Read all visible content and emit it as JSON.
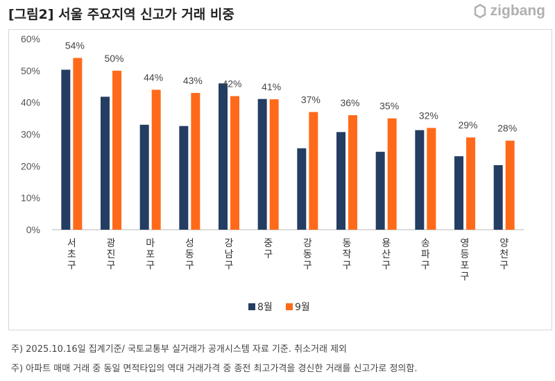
{
  "title": "[그림2] 서울 주요지역 신고가 거래 비중",
  "logo": "zigbang",
  "notes": [
    "주) 2025.10.16일 집계기준/ 국토교통부 실거래가 공개시스템 자료 기준. 취소거래 제외",
    "주) 아파트 매매 거래 중 동일 면적타입의 역대 거래가격 중 종전 최고가격을 경신한 거래를 신고가로 정의함."
  ],
  "chart_data": {
    "type": "bar",
    "title": "",
    "categories": [
      "서초구",
      "광진구",
      "마포구",
      "성동구",
      "강남구",
      "중구",
      "강동구",
      "동작구",
      "용산구",
      "송파구",
      "영등포구",
      "양천구"
    ],
    "series": [
      {
        "name": "8월",
        "color": "#243d62",
        "values": [
          50.3,
          41.8,
          33.0,
          32.6,
          46.0,
          41.1,
          25.6,
          30.7,
          24.5,
          31.3,
          23.1,
          20.3
        ]
      },
      {
        "name": "9월",
        "color": "#ff6a1a",
        "values": [
          54,
          50,
          44,
          43,
          42,
          41,
          37,
          36,
          35,
          32,
          29,
          28
        ],
        "labels": [
          "54%",
          "50%",
          "44%",
          "43%",
          "42%",
          "41%",
          "37%",
          "36%",
          "35%",
          "32%",
          "29%",
          "28%"
        ]
      }
    ],
    "ylim": [
      0,
      60
    ],
    "yticks": [
      "0%",
      "10%",
      "20%",
      "30%",
      "40%",
      "50%",
      "60%"
    ],
    "grid": false,
    "legend": "bottom"
  }
}
